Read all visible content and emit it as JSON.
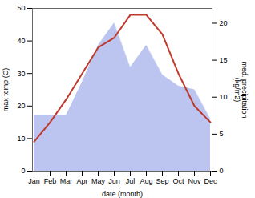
{
  "chart_data": {
    "type": "line",
    "categories": [
      "Jan",
      "Feb",
      "Mar",
      "Apr",
      "May",
      "Jun",
      "Jul",
      "Aug",
      "Sep",
      "Oct",
      "Nov",
      "Dec"
    ],
    "series": [
      {
        "type": "area",
        "axis": "y2",
        "color": "#bbc5ef",
        "values": [
          7.5,
          7.5,
          7.5,
          12,
          17,
          20,
          14,
          17,
          13,
          11.5,
          11,
          7
        ]
      },
      {
        "type": "line",
        "color": "#c0392b",
        "values": [
          9,
          15,
          22,
          30,
          38,
          41,
          48,
          48,
          42,
          30,
          20,
          15
        ]
      }
    ],
    "xlabel": "date (month)",
    "ylabel": "max temp (C)",
    "y2label": "med. precipitation\n(kg/m2)",
    "ylim": [
      0,
      50
    ],
    "yticks": [
      0,
      10,
      20,
      30,
      40,
      50
    ],
    "y2lim": [
      0,
      22
    ],
    "y2ticks": [
      0,
      5,
      10,
      15,
      20
    ],
    "grid": false
  }
}
